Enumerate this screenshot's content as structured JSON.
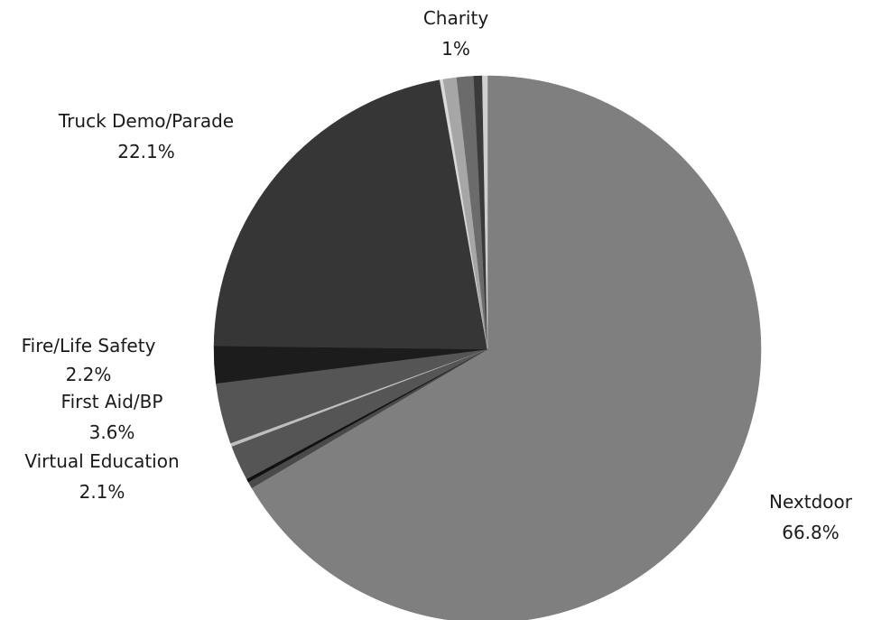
{
  "chart_data": {
    "type": "pie",
    "title": "",
    "slices": [
      {
        "label": "Nextdoor",
        "value_label": "66.8%",
        "value": 66.8,
        "color": "#7f7f7f"
      },
      {
        "label": "",
        "value_label": "",
        "value": 0.4,
        "color": "#4a4a4a"
      },
      {
        "label": "",
        "value_label": "",
        "value": 0.2,
        "color": "#111111"
      },
      {
        "label": "Virtual Education",
        "value_label": "2.1%",
        "value": 2.1,
        "color": "#555555"
      },
      {
        "label": "",
        "value_label": "",
        "value": 0.2,
        "color": "#bfbfbf"
      },
      {
        "label": "First Aid/BP",
        "value_label": "3.6%",
        "value": 3.6,
        "color": "#555555"
      },
      {
        "label": "Fire/Life Safety",
        "value_label": "2.2%",
        "value": 2.2,
        "color": "#1c1c1c"
      },
      {
        "label": "Truck Demo/Parade",
        "value_label": "22.1%",
        "value": 22.1,
        "color": "#363636"
      },
      {
        "label": "",
        "value_label": "",
        "value": 0.2,
        "color": "#d9d9d9"
      },
      {
        "label": "",
        "value_label": "",
        "value": 0.8,
        "color": "#a6a6a6"
      },
      {
        "label": "Charity",
        "value_label": "1%",
        "value": 1.0,
        "color": "#6b6b6b"
      },
      {
        "label": "",
        "value_label": "",
        "value": 0.5,
        "color": "#3a3a3a"
      },
      {
        "label": "",
        "value_label": "",
        "value": 0.3,
        "color": "#cfcfcf"
      }
    ],
    "legend": "none",
    "start_angle_deg": 0,
    "direction": "clockwise"
  }
}
